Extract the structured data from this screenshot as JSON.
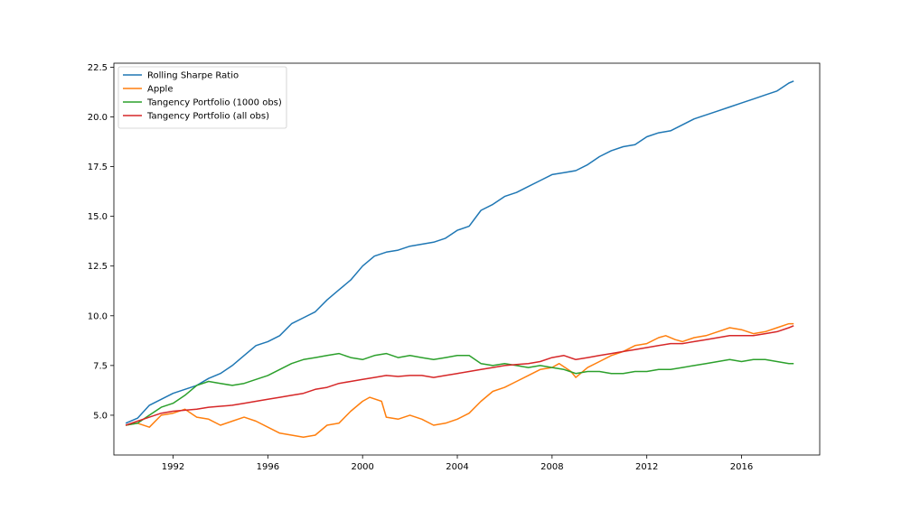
{
  "chart_data": {
    "type": "line",
    "title": "",
    "xlabel": "",
    "ylabel": "",
    "xlim": [
      1989.5,
      2019.3
    ],
    "ylim": [
      3.0,
      22.7
    ],
    "xticks": [
      1992,
      1996,
      2000,
      2004,
      2008,
      2012,
      2016
    ],
    "xtick_labels": [
      "1992",
      "1996",
      "2000",
      "2004",
      "2008",
      "2012",
      "2016"
    ],
    "yticks": [
      5.0,
      7.5,
      10.0,
      12.5,
      15.0,
      17.5,
      20.0,
      22.5
    ],
    "ytick_labels": [
      "5.0",
      "7.5",
      "10.0",
      "12.5",
      "15.0",
      "17.5",
      "20.0",
      "22.5"
    ],
    "grid": false,
    "legend_position": "upper-left",
    "series": [
      {
        "name": "Rolling Sharpe Ratio",
        "color": "#1f77b4",
        "x": [
          1990.0,
          1990.5,
          1991.0,
          1991.5,
          1992.0,
          1992.5,
          1993.0,
          1993.5,
          1994.0,
          1994.5,
          1995.0,
          1995.5,
          1996.0,
          1996.5,
          1997.0,
          1997.5,
          1998.0,
          1998.5,
          1999.0,
          1999.5,
          2000.0,
          2000.5,
          2001.0,
          2001.5,
          2002.0,
          2002.5,
          2003.0,
          2003.5,
          2004.0,
          2004.5,
          2005.0,
          2005.5,
          2006.0,
          2006.5,
          2007.0,
          2007.5,
          2008.0,
          2008.5,
          2009.0,
          2009.5,
          2010.0,
          2010.5,
          2011.0,
          2011.5,
          2012.0,
          2012.5,
          2013.0,
          2013.5,
          2014.0,
          2014.5,
          2015.0,
          2015.5,
          2016.0,
          2016.5,
          2017.0,
          2017.5,
          2018.0,
          2018.2
        ],
        "y": [
          4.6,
          4.85,
          5.5,
          5.8,
          6.1,
          6.3,
          6.5,
          6.85,
          7.1,
          7.5,
          8.0,
          8.5,
          8.7,
          9.0,
          9.6,
          9.9,
          10.2,
          10.8,
          11.3,
          11.8,
          12.5,
          13.0,
          13.2,
          13.3,
          13.5,
          13.6,
          13.7,
          13.9,
          14.3,
          14.5,
          15.3,
          15.6,
          16.0,
          16.2,
          16.5,
          16.8,
          17.1,
          17.2,
          17.3,
          17.6,
          18.0,
          18.3,
          18.5,
          18.6,
          19.0,
          19.2,
          19.3,
          19.6,
          19.9,
          20.1,
          20.3,
          20.5,
          20.7,
          20.9,
          21.1,
          21.3,
          21.7,
          21.8
        ]
      },
      {
        "name": "Apple",
        "color": "#ff7f0e",
        "x": [
          1990.0,
          1990.5,
          1991.0,
          1991.5,
          1992.0,
          1992.5,
          1993.0,
          1993.5,
          1994.0,
          1994.5,
          1995.0,
          1995.5,
          1996.0,
          1996.5,
          1997.0,
          1997.5,
          1998.0,
          1998.5,
          1999.0,
          1999.5,
          2000.0,
          2000.3,
          2000.8,
          2001.0,
          2001.5,
          2002.0,
          2002.5,
          2003.0,
          2003.5,
          2004.0,
          2004.5,
          2005.0,
          2005.5,
          2006.0,
          2006.5,
          2007.0,
          2007.5,
          2008.0,
          2008.3,
          2008.8,
          2009.0,
          2009.5,
          2010.0,
          2010.5,
          2011.0,
          2011.5,
          2012.0,
          2012.5,
          2012.8,
          2013.2,
          2013.5,
          2014.0,
          2014.5,
          2015.0,
          2015.5,
          2016.0,
          2016.5,
          2017.0,
          2017.5,
          2018.0,
          2018.2
        ],
        "y": [
          4.5,
          4.6,
          4.4,
          5.0,
          5.1,
          5.3,
          4.9,
          4.8,
          4.5,
          4.7,
          4.9,
          4.7,
          4.4,
          4.1,
          4.0,
          3.9,
          4.0,
          4.5,
          4.6,
          5.2,
          5.7,
          5.9,
          5.7,
          4.9,
          4.8,
          5.0,
          4.8,
          4.5,
          4.6,
          4.8,
          5.1,
          5.7,
          6.2,
          6.4,
          6.7,
          7.0,
          7.3,
          7.4,
          7.6,
          7.2,
          6.9,
          7.4,
          7.7,
          8.0,
          8.2,
          8.5,
          8.6,
          8.9,
          9.0,
          8.8,
          8.7,
          8.9,
          9.0,
          9.2,
          9.4,
          9.3,
          9.1,
          9.2,
          9.4,
          9.6,
          9.6
        ]
      },
      {
        "name": "Tangency Portfolio (1000 obs)",
        "color": "#2ca02c",
        "x": [
          1990.0,
          1990.5,
          1991.0,
          1991.5,
          1992.0,
          1992.5,
          1993.0,
          1993.5,
          1994.0,
          1994.5,
          1995.0,
          1995.5,
          1996.0,
          1996.5,
          1997.0,
          1997.5,
          1998.0,
          1998.5,
          1999.0,
          1999.5,
          2000.0,
          2000.5,
          2001.0,
          2001.5,
          2002.0,
          2002.5,
          2003.0,
          2003.5,
          2004.0,
          2004.5,
          2005.0,
          2005.5,
          2006.0,
          2006.5,
          2007.0,
          2007.5,
          2008.0,
          2008.5,
          2009.0,
          2009.5,
          2010.0,
          2010.5,
          2011.0,
          2011.5,
          2012.0,
          2012.5,
          2013.0,
          2013.5,
          2014.0,
          2014.5,
          2015.0,
          2015.5,
          2016.0,
          2016.5,
          2017.0,
          2017.5,
          2018.0,
          2018.2
        ],
        "y": [
          4.5,
          4.6,
          5.0,
          5.4,
          5.6,
          6.0,
          6.5,
          6.7,
          6.6,
          6.5,
          6.6,
          6.8,
          7.0,
          7.3,
          7.6,
          7.8,
          7.9,
          8.0,
          8.1,
          7.9,
          7.8,
          8.0,
          8.1,
          7.9,
          8.0,
          7.9,
          7.8,
          7.9,
          8.0,
          8.0,
          7.6,
          7.5,
          7.6,
          7.5,
          7.4,
          7.5,
          7.4,
          7.3,
          7.1,
          7.2,
          7.2,
          7.1,
          7.1,
          7.2,
          7.2,
          7.3,
          7.3,
          7.4,
          7.5,
          7.6,
          7.7,
          7.8,
          7.7,
          7.8,
          7.8,
          7.7,
          7.6,
          7.6
        ]
      },
      {
        "name": "Tangency Portfolio (all obs)",
        "color": "#d62728",
        "x": [
          1990.0,
          1990.5,
          1991.0,
          1991.5,
          1992.0,
          1992.5,
          1993.0,
          1993.5,
          1994.0,
          1994.5,
          1995.0,
          1995.5,
          1996.0,
          1996.5,
          1997.0,
          1997.5,
          1998.0,
          1998.5,
          1999.0,
          1999.5,
          2000.0,
          2000.5,
          2001.0,
          2001.5,
          2002.0,
          2002.5,
          2003.0,
          2003.5,
          2004.0,
          2004.5,
          2005.0,
          2005.5,
          2006.0,
          2006.5,
          2007.0,
          2007.5,
          2008.0,
          2008.5,
          2009.0,
          2009.5,
          2010.0,
          2010.5,
          2011.0,
          2011.5,
          2012.0,
          2012.5,
          2013.0,
          2013.5,
          2014.0,
          2014.5,
          2015.0,
          2015.5,
          2016.0,
          2016.5,
          2017.0,
          2017.5,
          2018.0,
          2018.2
        ],
        "y": [
          4.5,
          4.7,
          4.9,
          5.1,
          5.2,
          5.25,
          5.3,
          5.4,
          5.45,
          5.5,
          5.6,
          5.7,
          5.8,
          5.9,
          6.0,
          6.1,
          6.3,
          6.4,
          6.6,
          6.7,
          6.8,
          6.9,
          7.0,
          6.95,
          7.0,
          7.0,
          6.9,
          7.0,
          7.1,
          7.2,
          7.3,
          7.4,
          7.5,
          7.55,
          7.6,
          7.7,
          7.9,
          8.0,
          7.8,
          7.9,
          8.0,
          8.1,
          8.2,
          8.3,
          8.4,
          8.5,
          8.6,
          8.6,
          8.7,
          8.8,
          8.9,
          9.0,
          9.0,
          9.0,
          9.1,
          9.2,
          9.4,
          9.5
        ]
      }
    ]
  }
}
